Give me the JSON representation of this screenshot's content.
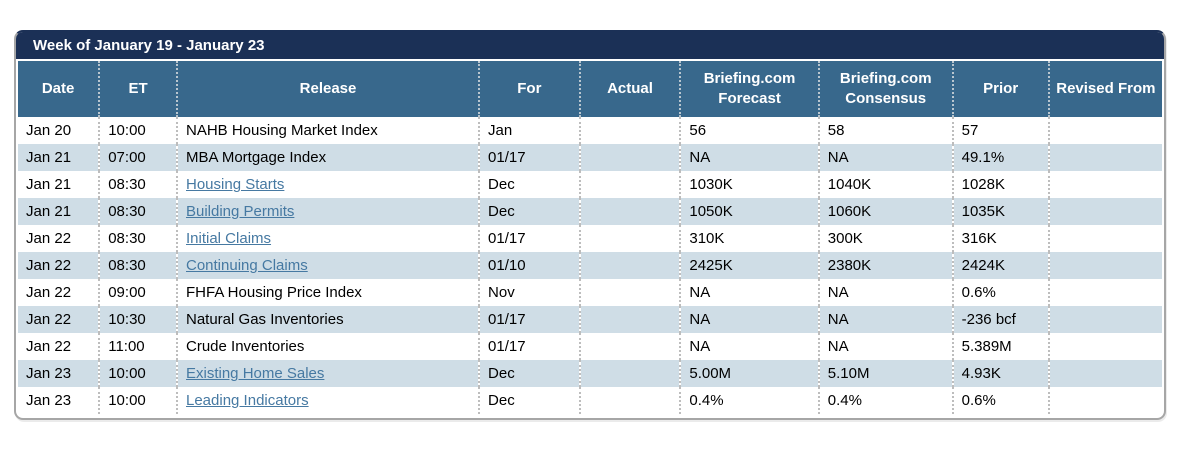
{
  "title": "Week of January 19 - January 23",
  "colors": {
    "title_bar_bg": "#1b3056",
    "header_bg": "#38688c",
    "alt_row_bg": "#cfdde6",
    "link_color": "#4679a2",
    "header_text": "#ffffff",
    "body_text": "#000000"
  },
  "columns": [
    {
      "key": "date",
      "label": "Date"
    },
    {
      "key": "et",
      "label": "ET"
    },
    {
      "key": "release",
      "label": "Release"
    },
    {
      "key": "for",
      "label": "For"
    },
    {
      "key": "actual",
      "label": "Actual"
    },
    {
      "key": "forecast",
      "label": "Briefing.com Forecast"
    },
    {
      "key": "consensus",
      "label": "Briefing.com Consensus"
    },
    {
      "key": "prior",
      "label": "Prior"
    },
    {
      "key": "revised",
      "label": "Revised From"
    }
  ],
  "rows": [
    {
      "date": "Jan 20",
      "et": "10:00",
      "release": "NAHB Housing Market Index",
      "link": false,
      "for": "Jan",
      "actual": "",
      "forecast": "56",
      "consensus": "58",
      "prior": "57",
      "revised": ""
    },
    {
      "date": "Jan 21",
      "et": "07:00",
      "release": "MBA Mortgage Index",
      "link": false,
      "for": "01/17",
      "actual": "",
      "forecast": "NA",
      "consensus": "NA",
      "prior": "49.1%",
      "revised": ""
    },
    {
      "date": "Jan 21",
      "et": "08:30",
      "release": "Housing Starts",
      "link": true,
      "for": "Dec",
      "actual": "",
      "forecast": "1030K",
      "consensus": "1040K",
      "prior": "1028K",
      "revised": ""
    },
    {
      "date": "Jan 21",
      "et": "08:30",
      "release": "Building Permits",
      "link": true,
      "for": "Dec",
      "actual": "",
      "forecast": "1050K",
      "consensus": "1060K",
      "prior": "1035K",
      "revised": ""
    },
    {
      "date": "Jan 22",
      "et": "08:30",
      "release": "Initial Claims",
      "link": true,
      "for": "01/17",
      "actual": "",
      "forecast": "310K",
      "consensus": "300K",
      "prior": "316K",
      "revised": ""
    },
    {
      "date": "Jan 22",
      "et": "08:30",
      "release": "Continuing Claims",
      "link": true,
      "for": "01/10",
      "actual": "",
      "forecast": "2425K",
      "consensus": "2380K",
      "prior": "2424K",
      "revised": ""
    },
    {
      "date": "Jan 22",
      "et": "09:00",
      "release": "FHFA Housing Price Index",
      "link": false,
      "for": "Nov",
      "actual": "",
      "forecast": "NA",
      "consensus": "NA",
      "prior": "0.6%",
      "revised": ""
    },
    {
      "date": "Jan 22",
      "et": "10:30",
      "release": "Natural Gas Inventories",
      "link": false,
      "for": "01/17",
      "actual": "",
      "forecast": "NA",
      "consensus": "NA",
      "prior": "-236 bcf",
      "revised": ""
    },
    {
      "date": "Jan 22",
      "et": "11:00",
      "release": "Crude Inventories",
      "link": false,
      "for": "01/17",
      "actual": "",
      "forecast": "NA",
      "consensus": "NA",
      "prior": "5.389M",
      "revised": ""
    },
    {
      "date": "Jan 23",
      "et": "10:00",
      "release": "Existing Home Sales",
      "link": true,
      "for": "Dec",
      "actual": "",
      "forecast": "5.00M",
      "consensus": "5.10M",
      "prior": "4.93K",
      "revised": ""
    },
    {
      "date": "Jan 23",
      "et": "10:00",
      "release": "Leading Indicators",
      "link": true,
      "for": "Dec",
      "actual": "",
      "forecast": "0.4%",
      "consensus": "0.4%",
      "prior": "0.6%",
      "revised": ""
    }
  ]
}
